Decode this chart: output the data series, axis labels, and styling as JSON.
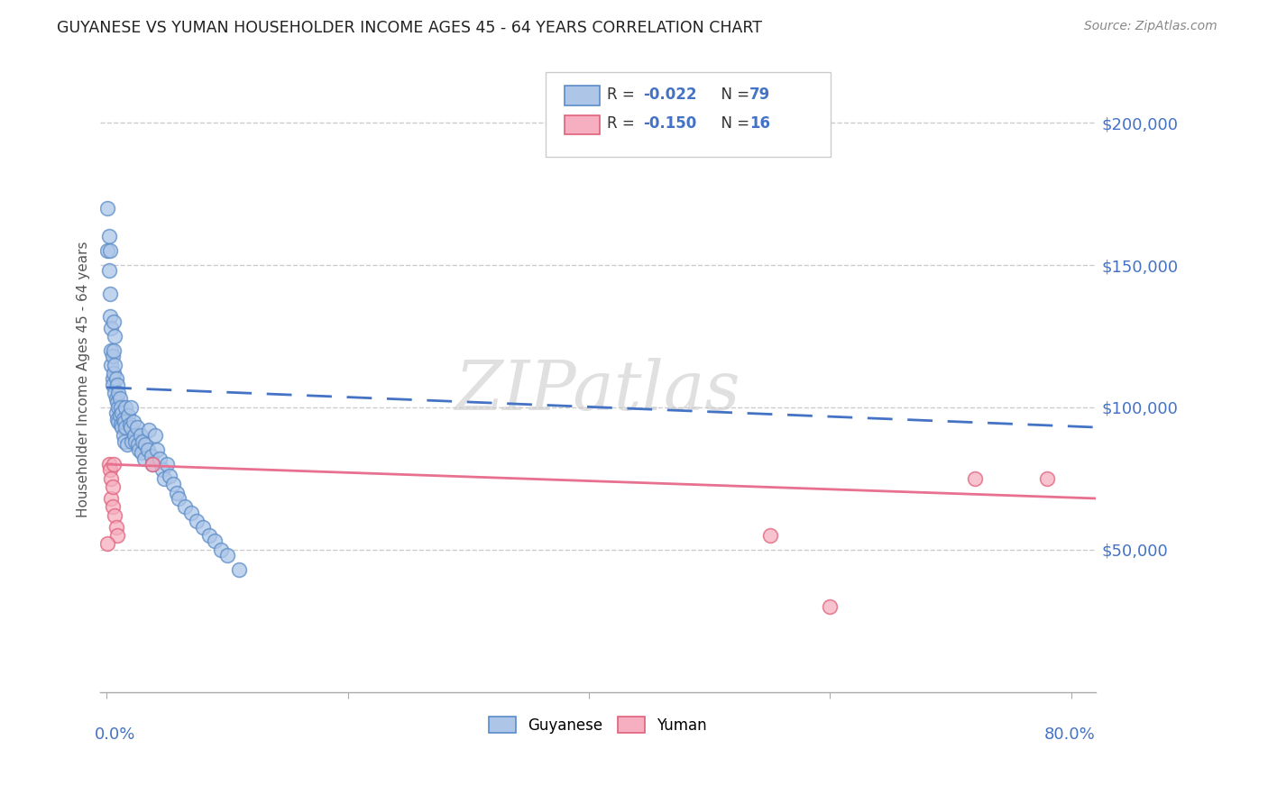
{
  "title": "GUYANESE VS YUMAN HOUSEHOLDER INCOME AGES 45 - 64 YEARS CORRELATION CHART",
  "source": "Source: ZipAtlas.com",
  "ylabel": "Householder Income Ages 45 - 64 years",
  "ytick_labels": [
    "$50,000",
    "$100,000",
    "$150,000",
    "$200,000"
  ],
  "ytick_values": [
    50000,
    100000,
    150000,
    200000
  ],
  "ylim": [
    0,
    220000
  ],
  "xlim": [
    -0.005,
    0.82
  ],
  "watermark": "ZIPatlas",
  "blue_color": "#adc6e8",
  "pink_color": "#f5afc0",
  "blue_edge_color": "#5b8cc8",
  "pink_edge_color": "#e0607a",
  "blue_line_color": "#4472c4",
  "pink_line_color": "#e87090",
  "title_color": "#222222",
  "axis_label_color": "#4472c4",
  "legend_label1": "Guyanese",
  "legend_label2": "Yuman",
  "guyanese_x": [
    0.001,
    0.001,
    0.002,
    0.002,
    0.003,
    0.003,
    0.003,
    0.004,
    0.004,
    0.004,
    0.005,
    0.005,
    0.005,
    0.006,
    0.006,
    0.006,
    0.007,
    0.007,
    0.007,
    0.008,
    0.008,
    0.008,
    0.009,
    0.009,
    0.009,
    0.01,
    0.01,
    0.01,
    0.011,
    0.011,
    0.012,
    0.012,
    0.013,
    0.013,
    0.014,
    0.014,
    0.015,
    0.015,
    0.016,
    0.016,
    0.017,
    0.018,
    0.019,
    0.02,
    0.02,
    0.021,
    0.022,
    0.023,
    0.024,
    0.025,
    0.026,
    0.027,
    0.028,
    0.029,
    0.03,
    0.031,
    0.032,
    0.034,
    0.035,
    0.037,
    0.038,
    0.04,
    0.042,
    0.044,
    0.046,
    0.048,
    0.05,
    0.052,
    0.055,
    0.058,
    0.06,
    0.065,
    0.07,
    0.075,
    0.08,
    0.085,
    0.09,
    0.095,
    0.1,
    0.11
  ],
  "guyanese_y": [
    155000,
    170000,
    160000,
    148000,
    155000,
    140000,
    132000,
    128000,
    120000,
    115000,
    118000,
    110000,
    108000,
    130000,
    120000,
    112000,
    125000,
    115000,
    105000,
    110000,
    103000,
    98000,
    108000,
    102000,
    96000,
    105000,
    100000,
    95000,
    103000,
    97000,
    100000,
    94000,
    98000,
    93000,
    96000,
    90000,
    95000,
    88000,
    100000,
    93000,
    87000,
    97000,
    94000,
    100000,
    93000,
    88000,
    95000,
    90000,
    88000,
    93000,
    87000,
    85000,
    90000,
    84000,
    88000,
    82000,
    87000,
    85000,
    92000,
    83000,
    80000,
    90000,
    85000,
    82000,
    78000,
    75000,
    80000,
    76000,
    73000,
    70000,
    68000,
    65000,
    63000,
    60000,
    58000,
    55000,
    53000,
    50000,
    48000,
    43000
  ],
  "yuman_x": [
    0.002,
    0.003,
    0.004,
    0.004,
    0.005,
    0.005,
    0.006,
    0.007,
    0.008,
    0.009,
    0.038,
    0.55,
    0.6,
    0.72,
    0.78,
    0.001
  ],
  "yuman_y": [
    80000,
    78000,
    75000,
    68000,
    72000,
    65000,
    80000,
    62000,
    58000,
    55000,
    80000,
    55000,
    30000,
    75000,
    75000,
    52000
  ],
  "blue_trend_x0": 0.0,
  "blue_trend_x1": 0.82,
  "blue_trend_y0": 107000,
  "blue_trend_y1": 93000,
  "pink_trend_x0": 0.0,
  "pink_trend_x1": 0.82,
  "pink_trend_y0": 80000,
  "pink_trend_y1": 68000
}
